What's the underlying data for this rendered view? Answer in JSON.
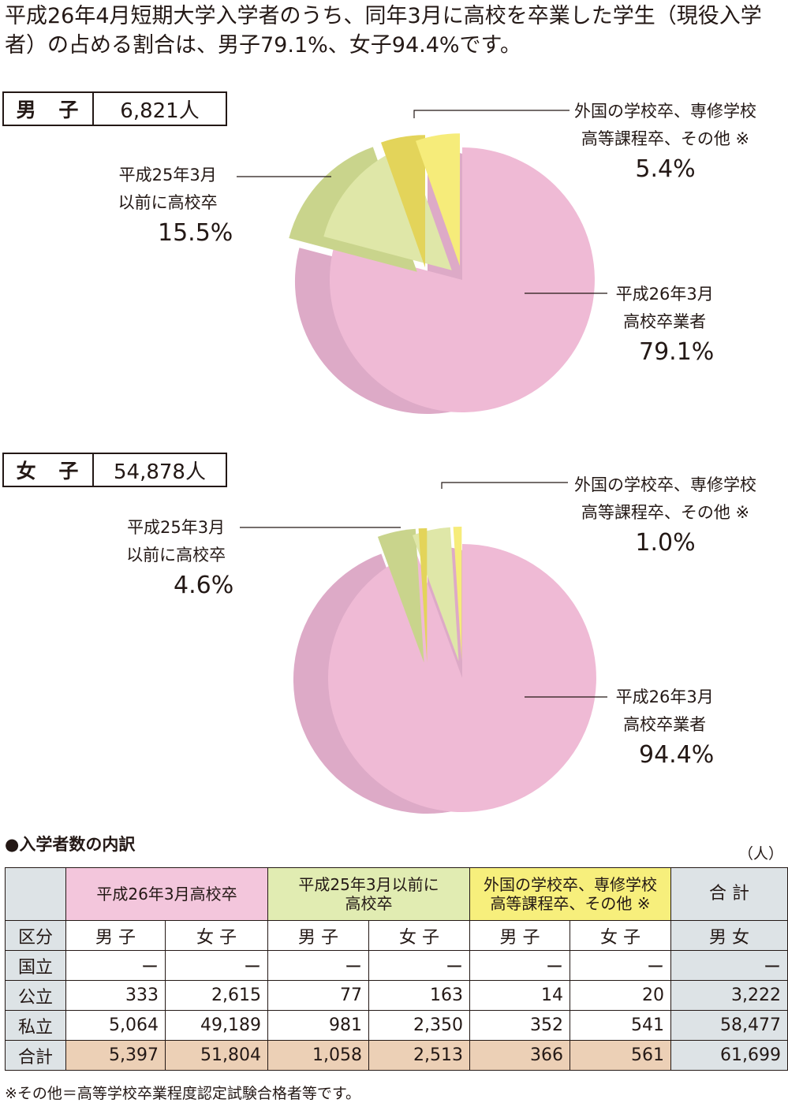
{
  "intro_text": "平成26年4月短期大学入学者のうち、同年3月に高校を卒業した学生（現役入学者）の占める割合は、男子79.1%、女子94.4%です。",
  "male": {
    "label": "男 子",
    "count": "6,821人"
  },
  "female": {
    "label": "女 子",
    "count": "54,878人"
  },
  "colors": {
    "current": "#efbad5",
    "current_side": "#ddaac7",
    "previous": "#dfe7a8",
    "previous_side": "#c9d48c",
    "other": "#f6ec7a",
    "other_side": "#e3d45a",
    "table_gray": "#dde3e6",
    "table_pink": "#f3c6dc",
    "table_lime": "#e1ecb2",
    "table_yellow": "#f7ef7c",
    "table_tan": "#ecd0b6"
  },
  "chart_data": [
    {
      "type": "pie",
      "title": "男 子 6,821人",
      "slices": [
        {
          "name_line1": "平成26年3月",
          "name_line2": "高校卒業者",
          "value": 79.1,
          "label": "79.1%"
        },
        {
          "name_line1": "平成25年3月",
          "name_line2": "以前に高校卒",
          "value": 15.5,
          "label": "15.5%"
        },
        {
          "name_line1": "外国の学校卒、専修学校",
          "name_line2": "高等課程卒、その他 ※",
          "value": 5.4,
          "label": "5.4%"
        }
      ]
    },
    {
      "type": "pie",
      "title": "女 子 54,878人",
      "slices": [
        {
          "name_line1": "平成26年3月",
          "name_line2": "高校卒業者",
          "value": 94.4,
          "label": "94.4%"
        },
        {
          "name_line1": "平成25年3月",
          "name_line2": "以前に高校卒",
          "value": 4.6,
          "label": "4.6%"
        },
        {
          "name_line1": "外国の学校卒、専修学校",
          "name_line2": "高等課程卒、その他 ※",
          "value": 1.0,
          "label": "1.0%"
        }
      ]
    },
    {
      "type": "table",
      "title": "●入学者数の内訳",
      "unit": "（人）",
      "groups": [
        "平成26年3月高校卒",
        "平成25年3月以前に高校卒",
        "外国の学校卒、専修学校高等課程卒、その他 ※",
        "合 計"
      ],
      "group_lines": [
        [
          "平成26年3月高校卒"
        ],
        [
          "平成25年3月以前に",
          "高校卒"
        ],
        [
          "外国の学校卒、専修学校",
          "高等課程卒、その他 ※"
        ],
        [
          "合 計"
        ]
      ],
      "subheader": [
        "区分",
        "男 子",
        "女 子",
        "男 子",
        "女 子",
        "男 子",
        "女 子",
        "男 女"
      ],
      "rows": [
        [
          "国立",
          "ー",
          "ー",
          "ー",
          "ー",
          "ー",
          "ー",
          "ー"
        ],
        [
          "公立",
          "333",
          "2,615",
          "77",
          "163",
          "14",
          "20",
          "3,222"
        ],
        [
          "私立",
          "5,064",
          "49,189",
          "981",
          "2,350",
          "352",
          "541",
          "58,477"
        ],
        [
          "合計",
          "5,397",
          "51,804",
          "1,058",
          "2,513",
          "366",
          "561",
          "61,699"
        ]
      ]
    }
  ],
  "footnote": "※その他＝高等学校卒業程度認定試験合格者等です。"
}
